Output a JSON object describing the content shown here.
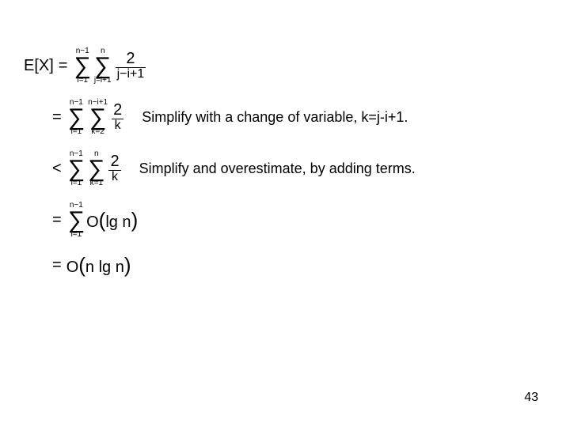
{
  "slide": {
    "background_color": "#ffffff",
    "text_color": "#000000",
    "math_font": "Arial",
    "comment_font": "Comic Sans MS",
    "math_fontsize": 20,
    "comment_fontsize": 18,
    "page_number": "43"
  },
  "rows": [
    {
      "lead": "E[X]",
      "operator": "=",
      "sums": [
        {
          "lower": "i=1",
          "upper": "n−1"
        },
        {
          "lower": "j=i+1",
          "upper": "n"
        }
      ],
      "term_num": "2",
      "term_den": "j−i+1",
      "comment": ""
    },
    {
      "lead": "",
      "operator": "=",
      "sums": [
        {
          "lower": "i=1",
          "upper": "n−1"
        },
        {
          "lower": "k=2",
          "upper": "n−i+1"
        }
      ],
      "term_num": "2",
      "term_den": "k",
      "comment": "Simplify with a change of variable, k=j-i+1."
    },
    {
      "lead": "",
      "operator": "<",
      "sums": [
        {
          "lower": "i=1",
          "upper": "n−1"
        },
        {
          "lower": "k=1",
          "upper": "n"
        }
      ],
      "term_num": "2",
      "term_den": "k",
      "comment": "Simplify and overestimate, by adding terms."
    },
    {
      "lead": "",
      "operator": "=",
      "sums": [
        {
          "lower": "i=1",
          "upper": "n−1"
        }
      ],
      "plain": "O(lg n)",
      "comment": ""
    },
    {
      "lead": "",
      "operator": "=",
      "sums": [],
      "plain_nlogn": "O(n lg n)",
      "comment": ""
    }
  ]
}
